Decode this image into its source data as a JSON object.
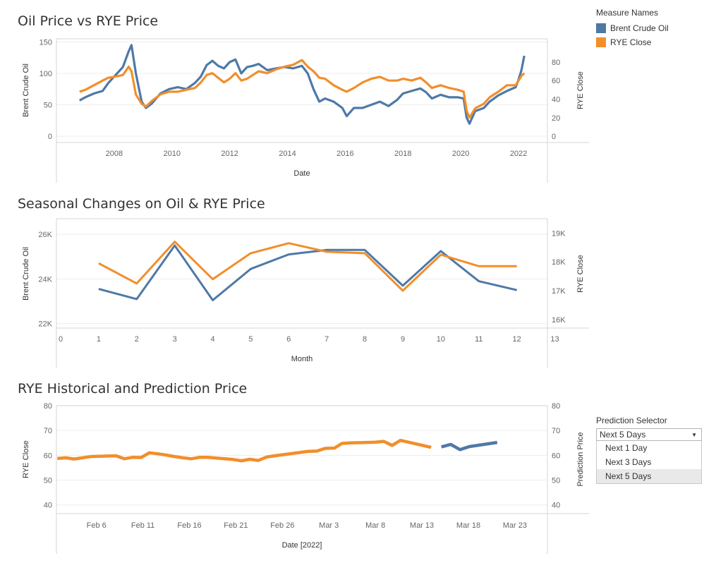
{
  "colors": {
    "oil": "#4e79a7",
    "rye": "#f28e2b"
  },
  "legend": {
    "title": "Measure Names",
    "items": [
      {
        "label": "Brent Crude Oil",
        "color": "#4e79a7"
      },
      {
        "label": "RYE Close",
        "color": "#f28e2b"
      }
    ]
  },
  "selector": {
    "title": "Prediction Selector",
    "selected": "Next 5 Days",
    "options": [
      "Next 1 Day",
      "Next 3 Days",
      "Next 5 Days"
    ]
  },
  "chart_data": [
    {
      "title": "Oil Price vs RYE Price",
      "type": "line",
      "xlabel": "Date",
      "ylabel_left": "Brent Crude Oil",
      "ylabel_right": "RYE Close",
      "x_ticks": [
        "2008",
        "2010",
        "2012",
        "2014",
        "2016",
        "2018",
        "2020",
        "2022"
      ],
      "xlim": [
        2006.0,
        2023.0
      ],
      "ylim_left": [
        -10,
        155
      ],
      "ylim_right": [
        -6.77,
        105
      ],
      "y_ticks_left": [
        0,
        50,
        100,
        150
      ],
      "y_ticks_right": [
        0,
        20,
        40,
        60,
        80
      ],
      "series": [
        {
          "name": "Brent Crude Oil",
          "axis": "left",
          "x": [
            2006.8,
            2007.0,
            2007.3,
            2007.6,
            2007.8,
            2008.0,
            2008.3,
            2008.5,
            2008.6,
            2008.75,
            2008.95,
            2009.1,
            2009.3,
            2009.6,
            2009.9,
            2010.2,
            2010.5,
            2010.8,
            2011.0,
            2011.2,
            2011.4,
            2011.6,
            2011.8,
            2012.0,
            2012.2,
            2012.4,
            2012.6,
            2012.8,
            2013.0,
            2013.3,
            2013.6,
            2013.9,
            2014.2,
            2014.5,
            2014.7,
            2014.9,
            2015.1,
            2015.3,
            2015.6,
            2015.9,
            2016.05,
            2016.3,
            2016.6,
            2016.9,
            2017.2,
            2017.5,
            2017.8,
            2018.0,
            2018.3,
            2018.6,
            2018.8,
            2019.0,
            2019.3,
            2019.6,
            2019.9,
            2020.1,
            2020.2,
            2020.3,
            2020.5,
            2020.8,
            2021.0,
            2021.3,
            2021.6,
            2021.9,
            2022.0,
            2022.1,
            2022.2
          ],
          "y": [
            57,
            62,
            68,
            72,
            85,
            95,
            110,
            135,
            145,
            100,
            55,
            45,
            52,
            68,
            75,
            78,
            75,
            85,
            95,
            113,
            120,
            112,
            108,
            118,
            122,
            100,
            110,
            112,
            115,
            105,
            108,
            110,
            108,
            112,
            100,
            75,
            55,
            60,
            55,
            45,
            32,
            45,
            45,
            50,
            55,
            48,
            58,
            68,
            72,
            76,
            70,
            60,
            66,
            62,
            62,
            60,
            30,
            20,
            40,
            45,
            55,
            65,
            72,
            78,
            90,
            105,
            128
          ]
        },
        {
          "name": "RYE Close",
          "axis": "right",
          "x": [
            2006.8,
            2007.0,
            2007.3,
            2007.6,
            2007.8,
            2008.0,
            2008.3,
            2008.5,
            2008.6,
            2008.75,
            2008.95,
            2009.1,
            2009.3,
            2009.6,
            2009.9,
            2010.2,
            2010.5,
            2010.8,
            2011.0,
            2011.2,
            2011.4,
            2011.6,
            2011.8,
            2012.0,
            2012.2,
            2012.4,
            2012.6,
            2012.8,
            2013.0,
            2013.3,
            2013.6,
            2013.9,
            2014.2,
            2014.5,
            2014.7,
            2014.9,
            2015.1,
            2015.3,
            2015.6,
            2015.9,
            2016.05,
            2016.3,
            2016.6,
            2016.9,
            2017.2,
            2017.5,
            2017.8,
            2018.0,
            2018.3,
            2018.6,
            2018.8,
            2019.0,
            2019.3,
            2019.6,
            2019.9,
            2020.1,
            2020.2,
            2020.3,
            2020.5,
            2020.8,
            2021.0,
            2021.3,
            2021.6,
            2021.9,
            2022.0,
            2022.1,
            2022.2
          ],
          "y": [
            48,
            50,
            55,
            60,
            63,
            64,
            66,
            75,
            70,
            45,
            35,
            32,
            38,
            45,
            48,
            48,
            50,
            52,
            58,
            66,
            68,
            63,
            58,
            62,
            68,
            60,
            62,
            66,
            70,
            68,
            72,
            75,
            77,
            82,
            75,
            70,
            63,
            62,
            55,
            50,
            48,
            52,
            58,
            62,
            64,
            60,
            60,
            62,
            60,
            63,
            58,
            52,
            55,
            52,
            50,
            48,
            28,
            20,
            30,
            35,
            42,
            48,
            55,
            55,
            60,
            65,
            68
          ]
        }
      ]
    },
    {
      "title": "Seasonal Changes on Oil & RYE Price",
      "type": "line",
      "xlabel": "Month",
      "ylabel_left": "Brent Crude Oil",
      "ylabel_right": "RYE Close",
      "x_ticks": [
        0,
        1,
        2,
        3,
        4,
        5,
        6,
        7,
        8,
        9,
        10,
        11,
        12,
        13
      ],
      "xlim": [
        0,
        12.6
      ],
      "ylim_left": [
        21800,
        26700
      ],
      "ylim_right": [
        15700,
        19500
      ],
      "y_ticks_left": [
        22000,
        24000,
        26000
      ],
      "y_ticks_left_labels": [
        "22K",
        "24K",
        "26K"
      ],
      "y_ticks_right": [
        16000,
        17000,
        18000,
        19000
      ],
      "y_ticks_right_labels": [
        "16K",
        "17K",
        "18K",
        "19K"
      ],
      "categories": [
        1,
        2,
        3,
        4,
        5,
        6,
        7,
        8,
        9,
        10,
        11,
        12
      ],
      "series": [
        {
          "name": "Brent Crude Oil",
          "axis": "left",
          "values": [
            23550,
            23100,
            25500,
            23050,
            24450,
            25100,
            25300,
            25300,
            23700,
            25250,
            23900,
            23500
          ]
        },
        {
          "name": "RYE Close",
          "axis": "right",
          "values": [
            17950,
            17250,
            18700,
            17400,
            18300,
            18650,
            18350,
            18300,
            17000,
            18250,
            17850,
            17850
          ]
        }
      ]
    },
    {
      "title": "RYE Historical and Prediction Price",
      "type": "line",
      "xlabel": "Date [2022]",
      "ylabel_left": "RYE Close",
      "ylabel_right": "Prediction Price",
      "x_ticks": [
        "Feb 6",
        "Feb 11",
        "Feb 16",
        "Feb 21",
        "Feb 26",
        "Mar 3",
        "Mar 8",
        "Mar 13",
        "Mar 18",
        "Mar 23"
      ],
      "x_ticks_day": [
        6,
        11,
        16,
        21,
        26,
        31,
        36,
        41,
        46,
        51
      ],
      "xlim": [
        1.7,
        54.5
      ],
      "ylim_left": [
        36.5,
        80
      ],
      "ylim_right": [
        36.5,
        80
      ],
      "y_ticks_left": [
        40,
        50,
        60,
        70,
        80
      ],
      "y_ticks_right": [
        40,
        50,
        60,
        70,
        80
      ],
      "x_unit": "day of year 2022 minus 31 (Feb 1 = 1)",
      "series": [
        {
          "name": "RYE Close",
          "axis": "left",
          "x": [
            1.8,
            2.7,
            3.6,
            4.5,
            5.4,
            8.1,
            9.0,
            9.9,
            10.8,
            11.7,
            12.6,
            13.5,
            14.4,
            15.3,
            16.2,
            17.1,
            18.0,
            20.7,
            21.6,
            22.5,
            23.4,
            24.3,
            25.2,
            28.0,
            28.8,
            29.7,
            30.6,
            31.6,
            32.4,
            33.3,
            36.0,
            36.9,
            37.8,
            38.7,
            42.0
          ],
          "y": [
            58.7,
            59.0,
            58.5,
            59.0,
            59.5,
            59.8,
            58.6,
            59.2,
            59.1,
            61.0,
            60.6,
            60.1,
            59.5,
            59.0,
            58.6,
            59.2,
            59.2,
            58.3,
            57.8,
            58.4,
            57.9,
            59.3,
            59.8,
            61.2,
            61.6,
            61.7,
            62.8,
            62.9,
            64.8,
            65.0,
            65.3,
            65.6,
            64.0,
            66.0,
            63.2
          ]
        },
        {
          "name": "Prediction Price",
          "axis": "right",
          "x": [
            43.1,
            44.1,
            45.1,
            46.1,
            49.1
          ],
          "y": [
            63.4,
            64.4,
            62.3,
            63.5,
            65.2
          ]
        }
      ]
    }
  ]
}
